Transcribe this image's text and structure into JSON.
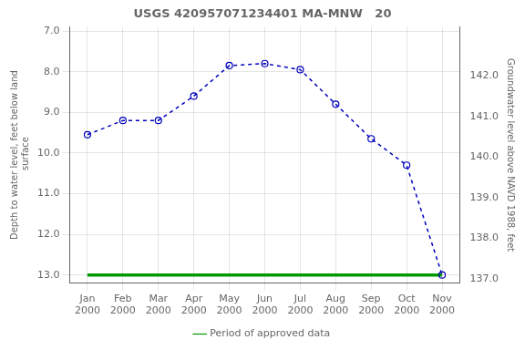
{
  "chart_data": {
    "type": "line",
    "title": "USGS 420957071234401 MA-MNW   20",
    "y_label": "Depth to water level, feet below land\n surface",
    "y2_label": "Groundwater level above NAVD 1988, feet",
    "categories": [
      "Jan\n2000",
      "Feb\n2000",
      "Mar\n2000",
      "Apr\n2000",
      "May\n2000",
      "Jun\n2000",
      "Jul\n2000",
      "Aug\n2000",
      "Sep\n2000",
      "Oct\n2000",
      "Nov\n2000"
    ],
    "series": [
      {
        "color": "#0000bb",
        "marker": "circle",
        "line_style": "dashed",
        "values": [
          9.55,
          9.2,
          9.2,
          8.6,
          7.85,
          7.8,
          7.95,
          8.8,
          9.65,
          10.3,
          13.0
        ]
      },
      {
        "name": "Period of approved data",
        "color": "#009900",
        "marker": "none",
        "line_style": "solid",
        "values": [
          13.0,
          13.0,
          13.0,
          13.0,
          13.0,
          13.0,
          13.0,
          13.0,
          13.0,
          13.0,
          13.0
        ]
      }
    ],
    "ylim": [
      13.2,
      6.9
    ],
    "yticks": [
      {
        "value": 7.0,
        "label": "7.0"
      },
      {
        "value": 8.0,
        "label": "8.0"
      },
      {
        "value": 9.0,
        "label": "9.0"
      },
      {
        "value": 10.0,
        "label": "10.0"
      },
      {
        "value": 11.0,
        "label": "11.0"
      },
      {
        "value": 12.0,
        "label": "12.0"
      },
      {
        "value": 13.0,
        "label": "13.0"
      }
    ],
    "y2lim": [
      136.9,
      143.2
    ],
    "y2ticks": [
      {
        "value": 137.0,
        "label": "137.0"
      },
      {
        "value": 138.0,
        "label": "138.0"
      },
      {
        "value": 139.0,
        "label": "139.0"
      },
      {
        "value": 140.0,
        "label": "140.0"
      },
      {
        "value": 141.0,
        "label": "141.0"
      },
      {
        "value": 142.0,
        "label": "142.0"
      }
    ],
    "grid": true,
    "legend": "bottom"
  }
}
